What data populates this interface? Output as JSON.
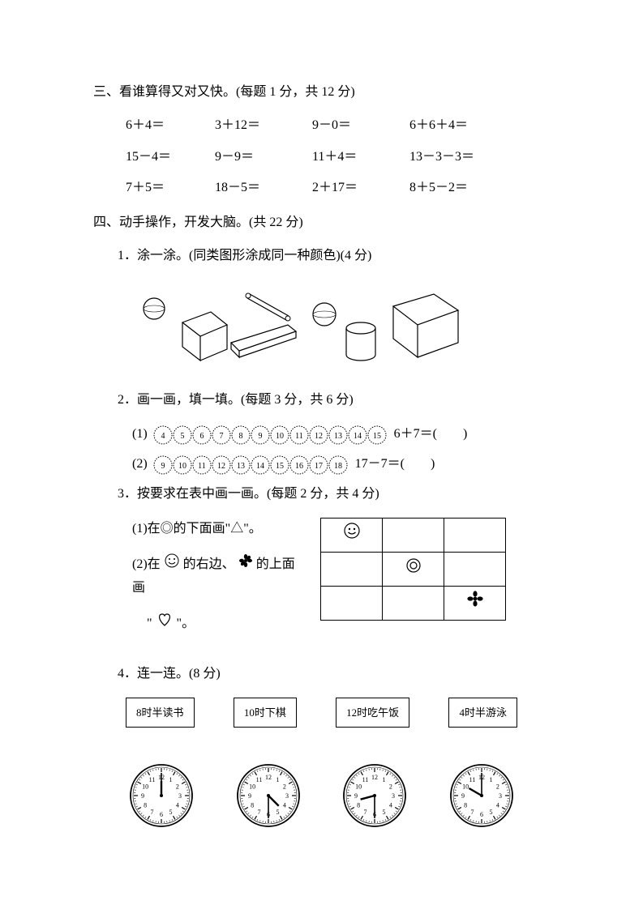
{
  "section3": {
    "title": "三、看谁算得又对又快。(每题 1 分，共 12 分)",
    "rows": [
      [
        "6＋4＝",
        "3＋12＝",
        "9－0＝",
        "6＋6＋4＝"
      ],
      [
        "15－4＝",
        "9－9＝",
        "11＋4＝",
        "13－3－3＝"
      ],
      [
        "7＋5＝",
        "18－5＝",
        "2＋17＝",
        "8＋5－2＝"
      ]
    ]
  },
  "section4": {
    "title": "四、动手操作，开发大脑。(共 22 分)",
    "q1": {
      "title": "1．涂一涂。(同类图形涂成同一种颜色)(4 分)"
    },
    "q2": {
      "title": "2．画一画，填一填。(每题 3 分，共 6 分)",
      "rows": [
        {
          "label": "(1)",
          "circles": [
            4,
            5,
            6,
            7,
            8,
            9,
            10,
            11,
            12,
            13,
            14,
            15
          ],
          "tail": "6＋7＝(　　)"
        },
        {
          "label": "(2)",
          "circles": [
            9,
            10,
            11,
            12,
            13,
            14,
            15,
            16,
            17,
            18
          ],
          "tail": "17－7＝(　　)"
        }
      ]
    },
    "q3": {
      "title": "3．按要求在表中画一画。(每题 2 分，共 4 分)",
      "line1_a": "(1)在◎的下面画\"△\"。",
      "line2_a": "(2)在",
      "line2_b": "的右边、",
      "line2_c": "的上面画",
      "line3_a": "\"",
      "line3_b": "\"。"
    },
    "q4": {
      "title": "4．连一连。(8 分)",
      "boxes": [
        "8时半读书",
        "10时下棋",
        "12时吃午饭",
        "4时半游泳"
      ],
      "clocks": [
        {
          "hour": 12,
          "minute": 0
        },
        {
          "hour": 4,
          "minute": 30
        },
        {
          "hour": 8,
          "minute": 30
        },
        {
          "hour": 10,
          "minute": 0
        }
      ]
    }
  },
  "colors": {
    "stroke": "#000000",
    "bg": "#ffffff"
  }
}
